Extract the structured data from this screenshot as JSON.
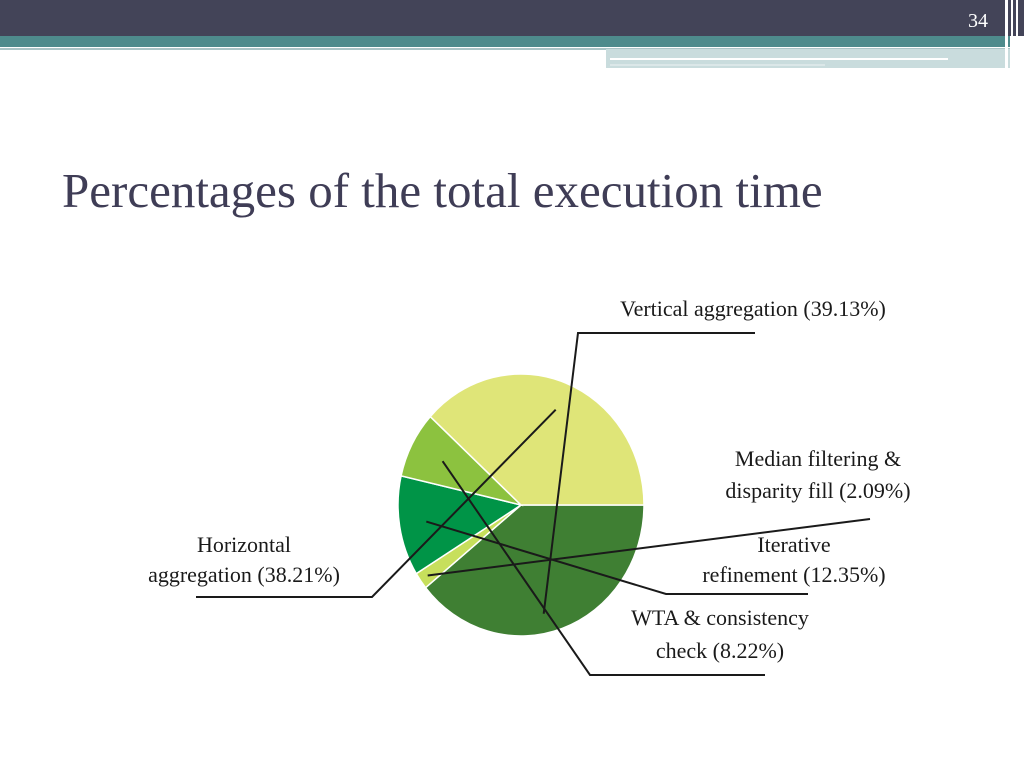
{
  "slide": {
    "page_number": "34",
    "title": "Percentages of the total execution time"
  },
  "chart_data": {
    "type": "pie",
    "title": "",
    "slices": [
      {
        "label_lines": [
          "Vertical aggregation (39.13%)"
        ],
        "value": 39.13,
        "color": "#3f7f33"
      },
      {
        "label_lines": [
          "Median filtering &",
          "disparity fill (2.09%)"
        ],
        "value": 2.09,
        "color": "#c7df5c"
      },
      {
        "label_lines": [
          "Iterative",
          "refinement (12.35%)"
        ],
        "value": 12.35,
        "color": "#009447"
      },
      {
        "label_lines": [
          "WTA & consistency",
          "check (8.22%)"
        ],
        "value": 8.22,
        "color": "#8cc23f"
      },
      {
        "label_lines": [
          "Horizontal",
          "aggregation (38.21%)"
        ],
        "value": 38.21,
        "color": "#dfe578"
      }
    ],
    "start_angle_deg": 0,
    "direction": "clockwise from 3 o'clock"
  }
}
